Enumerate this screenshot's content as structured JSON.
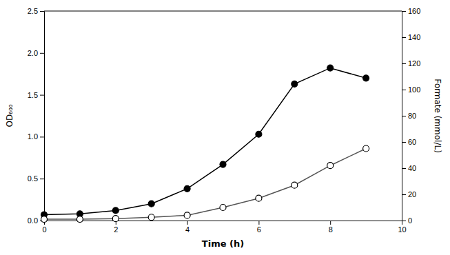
{
  "chart_data": {
    "type": "line",
    "x": [
      0,
      1,
      2,
      3,
      4,
      5,
      6,
      7,
      8,
      9
    ],
    "series": [
      {
        "color": "black",
        "marker": "circle",
        "values": [
          0.07,
          0.08,
          0.12,
          0.2,
          0.38,
          0.67,
          1.03,
          1.63,
          1.82,
          1.7
        ]
      },
      {
        "color": "#555555",
        "marker": "open-circle",
        "axis": "y2",
        "values": [
          1.0,
          1.0,
          1.5,
          2.5,
          4.0,
          10.0,
          17.0,
          27.0,
          42.0,
          55.0
        ]
      }
    ],
    "xlabel": "Time (h)",
    "ylabel": "OD₆₀₀",
    "y2label": "Formate (mmol/L)",
    "xlim": [
      0,
      10
    ],
    "xticks": [
      0,
      2,
      4,
      6,
      8,
      10
    ],
    "ylim": [
      0,
      2.5
    ],
    "yticks": [
      {
        "value": 0,
        "label": "0.0"
      },
      0.5,
      {
        "value": 1,
        "label": "1.0"
      },
      1.5,
      {
        "value": 2,
        "label": "2.0"
      },
      2.5
    ],
    "y2lim": [
      0,
      160
    ],
    "y2ticks": [
      0,
      20,
      40,
      60,
      80,
      100,
      120,
      140,
      160
    ],
    "grid": false
  }
}
